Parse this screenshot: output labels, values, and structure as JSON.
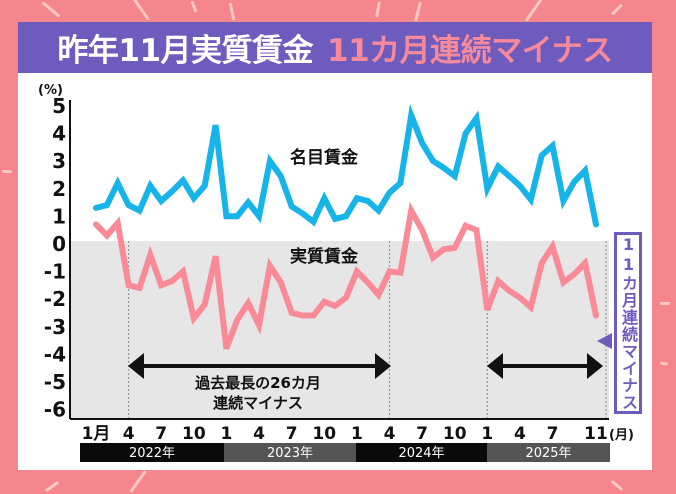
{
  "title": {
    "main": "昨年11月実質賃金",
    "highlight": "11カ月連続マイナス"
  },
  "colors": {
    "background": "#f6868e",
    "titlebar": "#6e5bbe",
    "title_highlight": "#f7899a",
    "nominal_line": "#16b4e8",
    "real_line": "#f98a96",
    "negative_area": "#e6e6e6",
    "sidebox": "#6e5bbe"
  },
  "annotations": {
    "nominal_label": "名目賃金",
    "real_label": "実質賃金",
    "record_line1": "過去最長の26カ月",
    "record_line2": "連続マイナス",
    "sidebox": "11カ月連続マイナス"
  },
  "axis": {
    "unit": "(%)",
    "month_unit": "(月)"
  },
  "chart_data": {
    "type": "line",
    "title": "昨年11月実質賃金 11カ月連続マイナス",
    "xlabel": "",
    "ylabel": "(%)",
    "ylim": [
      -6,
      5
    ],
    "yticks": [
      5,
      4,
      3,
      2,
      1,
      0,
      -1,
      -2,
      -3,
      -4,
      -5,
      -6
    ],
    "xtick_labels": [
      {
        "index": 0,
        "label": "1月"
      },
      {
        "index": 3,
        "label": "4"
      },
      {
        "index": 6,
        "label": "7"
      },
      {
        "index": 9,
        "label": "10"
      },
      {
        "index": 12,
        "label": "1"
      },
      {
        "index": 15,
        "label": "4"
      },
      {
        "index": 18,
        "label": "7"
      },
      {
        "index": 21,
        "label": "10"
      },
      {
        "index": 24,
        "label": "1"
      },
      {
        "index": 27,
        "label": "4"
      },
      {
        "index": 30,
        "label": "7"
      },
      {
        "index": 33,
        "label": "10"
      },
      {
        "index": 36,
        "label": "1"
      },
      {
        "index": 39,
        "label": "4"
      },
      {
        "index": 42,
        "label": "7"
      },
      {
        "index": 46,
        "label": "11"
      }
    ],
    "years": [
      {
        "label": "2022年",
        "start": 0,
        "end": 11
      },
      {
        "label": "2023年",
        "start": 12,
        "end": 23
      },
      {
        "label": "2024年",
        "start": 24,
        "end": 35
      },
      {
        "label": "2025年",
        "start": 36,
        "end": 46
      }
    ],
    "x": [
      "2022-01",
      "2022-02",
      "2022-03",
      "2022-04",
      "2022-05",
      "2022-06",
      "2022-07",
      "2022-08",
      "2022-09",
      "2022-10",
      "2022-11",
      "2022-12",
      "2023-01",
      "2023-02",
      "2023-03",
      "2023-04",
      "2023-05",
      "2023-06",
      "2023-07",
      "2023-08",
      "2023-09",
      "2023-10",
      "2023-11",
      "2023-12",
      "2024-01",
      "2024-02",
      "2024-03",
      "2024-04",
      "2024-05",
      "2024-06",
      "2024-07",
      "2024-08",
      "2024-09",
      "2024-10",
      "2024-11",
      "2024-12",
      "2025-01",
      "2025-02",
      "2025-03",
      "2025-04",
      "2025-05",
      "2025-06",
      "2025-07",
      "2025-08",
      "2025-09",
      "2025-10",
      "2025-11"
    ],
    "series": [
      {
        "name": "名目賃金",
        "values": [
          1.2,
          1.3,
          2.1,
          1.3,
          1.1,
          2.0,
          1.45,
          1.8,
          2.2,
          1.55,
          2.0,
          4.2,
          0.9,
          0.9,
          1.4,
          0.9,
          2.9,
          2.35,
          1.25,
          1.0,
          0.7,
          1.55,
          0.8,
          0.9,
          1.55,
          1.45,
          1.1,
          1.75,
          2.1,
          4.55,
          3.55,
          2.9,
          2.65,
          2.35,
          3.9,
          4.45,
          1.9,
          2.7,
          2.35,
          2.0,
          1.5,
          3.1,
          3.45,
          1.45,
          2.15,
          2.55,
          0.6
        ]
      },
      {
        "name": "実質賃金",
        "values": [
          0.6,
          0.2,
          0.65,
          -1.6,
          -1.7,
          -0.5,
          -1.6,
          -1.45,
          -1.1,
          -2.8,
          -2.3,
          -0.55,
          -3.9,
          -2.85,
          -2.25,
          -3.05,
          -0.9,
          -1.5,
          -2.6,
          -2.7,
          -2.7,
          -2.2,
          -2.35,
          -2.05,
          -1.1,
          -1.5,
          -1.95,
          -1.1,
          -1.15,
          1.1,
          0.4,
          -0.6,
          -0.3,
          -0.25,
          0.55,
          0.4,
          -2.5,
          -1.45,
          -1.8,
          -2.05,
          -2.4,
          -0.8,
          -0.2,
          -1.5,
          -1.2,
          -0.8,
          -2.7
        ]
      }
    ],
    "shaded_negative_region": true,
    "dashed_verticals_at_index": [
      3,
      27,
      36,
      46
    ],
    "range_arrows": [
      {
        "from_index": 3,
        "to_index": 27,
        "label": "過去最長の26カ月連続マイナス"
      },
      {
        "from_index": 36,
        "to_index": 46,
        "label": "11カ月連続マイナス"
      }
    ]
  }
}
